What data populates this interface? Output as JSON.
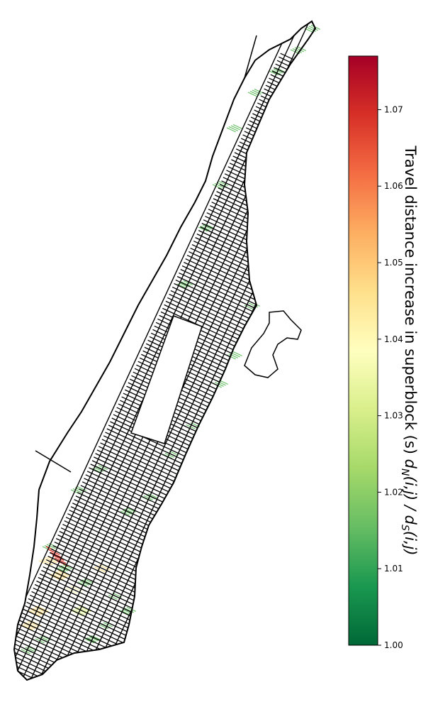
{
  "colorbar": {
    "label_prefix": "Travel distance increase in superblock (s) ",
    "label_math": "d_N(i,j) / d_S(i,j)",
    "min": 1.0,
    "max": 1.077,
    "ticks": [
      "1.00",
      "1.01",
      "1.02",
      "1.03",
      "1.04",
      "1.05",
      "1.06",
      "1.07"
    ],
    "colormap": "RdYlGn_r",
    "stops": [
      "#006837",
      "#1a9850",
      "#66bd63",
      "#a6d96a",
      "#d9ef8b",
      "#ffffbf",
      "#fee08b",
      "#fdae61",
      "#f46d43",
      "#d73027",
      "#a50026"
    ]
  },
  "map": {
    "street_color": "#000000",
    "background": "#ffffff"
  }
}
